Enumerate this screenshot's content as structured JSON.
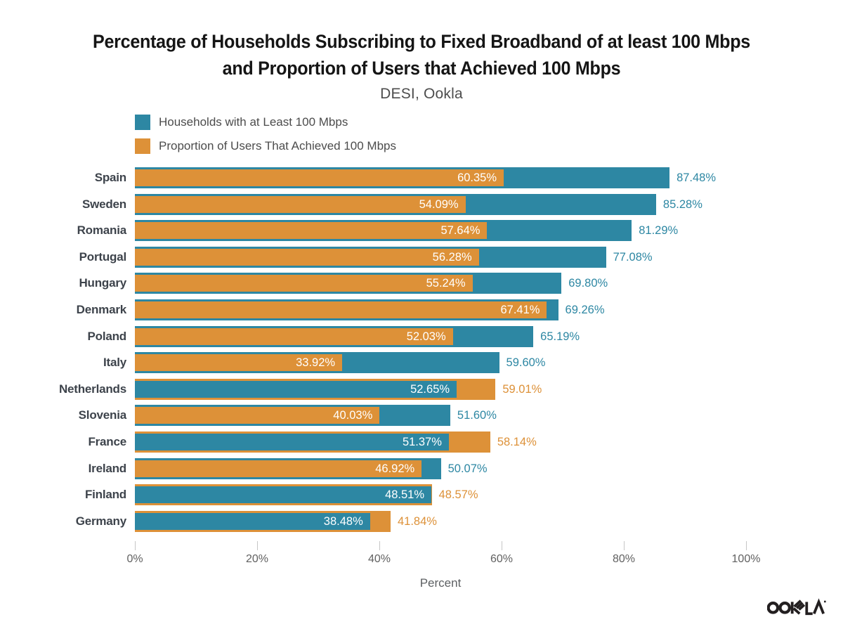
{
  "title": {
    "line1": "Percentage of Households Subscribing to Fixed Broadband of at least 100 Mbps",
    "line2": "and Proportion of Users that Achieved 100 Mbps",
    "subtitle": "DESI, Ookla"
  },
  "colors": {
    "teal": "#2d87a3",
    "orange": "#dd9138",
    "inside_label": "#ffffff",
    "category_label": "#3d434b",
    "tick": "#c6c6c6",
    "tick_label": "#616161",
    "logo": "#231f20"
  },
  "axis": {
    "label": "Percent",
    "ticks": [
      "0%",
      "20%",
      "40%",
      "60%",
      "80%",
      "100%"
    ],
    "tick_values": [
      0,
      20,
      40,
      60,
      80,
      100
    ],
    "max": 100
  },
  "logo": {
    "text": "OOKLA"
  },
  "chart_data": {
    "type": "bar",
    "orientation": "horizontal",
    "title": "Percentage of Households Subscribing to Fixed Broadband of at least 100 Mbps and Proportion of Users that Achieved 100 Mbps",
    "subtitle": "DESI, Ookla",
    "xlabel": "Percent",
    "xlim": [
      0,
      100
    ],
    "grid": false,
    "legend_position": "top-left",
    "bar_style": "overlaid, smaller value drawn in front at reduced height; larger value labeled outside bar in its series color, smaller value labeled inside in white",
    "categories": [
      "Spain",
      "Sweden",
      "Romania",
      "Portugal",
      "Hungary",
      "Denmark",
      "Poland",
      "Italy",
      "Netherlands",
      "Slovenia",
      "France",
      "Ireland",
      "Finland",
      "Germany"
    ],
    "series": [
      {
        "name": "Households with at Least 100 Mbps",
        "color": "#2d87a3",
        "values": [
          87.48,
          85.28,
          81.29,
          77.08,
          69.8,
          69.26,
          65.19,
          59.6,
          52.65,
          51.6,
          51.37,
          50.07,
          48.51,
          38.48
        ]
      },
      {
        "name": "Proportion of Users That Achieved 100 Mbps",
        "color": "#dd9138",
        "values": [
          60.35,
          54.09,
          57.64,
          56.28,
          55.24,
          67.41,
          52.03,
          33.92,
          59.01,
          40.03,
          58.14,
          46.92,
          48.57,
          41.84
        ]
      }
    ]
  }
}
